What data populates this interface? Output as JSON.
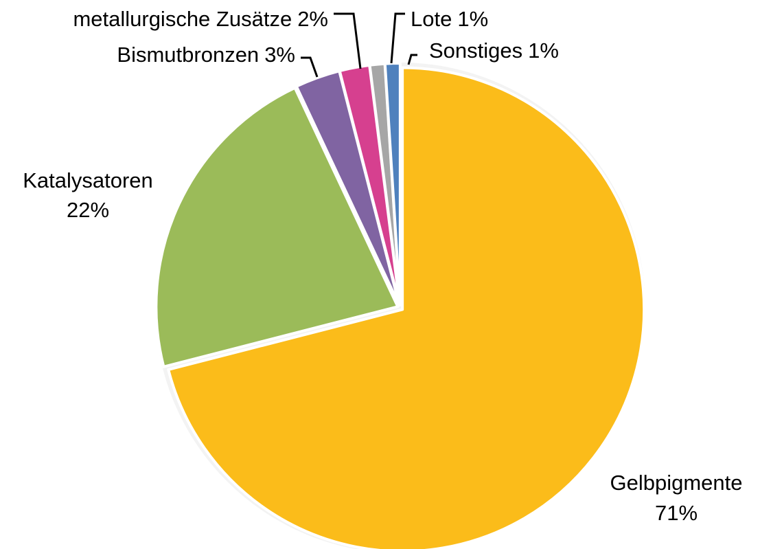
{
  "chart_data": {
    "type": "pie",
    "categories": [
      "Gelbpigmente",
      "Katalysatoren",
      "Bismutbronzen",
      "metallurgische Zusätze",
      "Lote",
      "Sonstiges"
    ],
    "values": [
      71,
      22,
      3,
      2,
      1,
      1
    ],
    "value_labels": [
      "71%",
      "22%",
      "3%",
      "2%",
      "1%",
      "1%"
    ],
    "colors": [
      "#fbbc1a",
      "#9bbb59",
      "#8064a2",
      "#d6408f",
      "#a6a6a6",
      "#4f81bd"
    ]
  }
}
